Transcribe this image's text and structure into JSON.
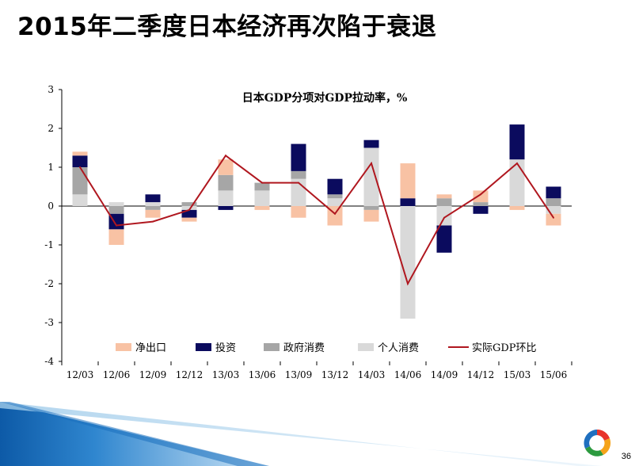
{
  "slide": {
    "title": "2015年二季度日本经济再次陷于衰退",
    "page_number": "36"
  },
  "colors": {
    "net_exports": "#F8C2A4",
    "investment": "#0B0B5E",
    "gov_consumption": "#A6A6A6",
    "private_consumption": "#D9D9D9",
    "real_gdp": "#B0171F"
  },
  "chart_data": {
    "type": "bar",
    "subtype": "stacked-bar-with-line",
    "title": "日本GDP分项对GDP拉动率，%",
    "categories": [
      "12/03",
      "12/06",
      "12/09",
      "12/12",
      "13/03",
      "13/06",
      "13/09",
      "13/12",
      "14/03",
      "14/06",
      "14/09",
      "14/12",
      "15/03",
      "15/06"
    ],
    "ylim": [
      -4,
      3
    ],
    "yticks": [
      3,
      2,
      1,
      0,
      -1,
      -2,
      -3,
      -4
    ],
    "legend_position": "bottom",
    "series": [
      {
        "name": "净出口",
        "type": "bar",
        "color": "#F8C2A4",
        "values": [
          0.1,
          -0.4,
          -0.2,
          -0.1,
          0.4,
          -0.1,
          -0.3,
          -0.5,
          -0.3,
          0.9,
          0.1,
          0.3,
          -0.1,
          -0.3
        ]
      },
      {
        "name": "投资",
        "type": "bar",
        "color": "#0B0B5E",
        "values": [
          0.3,
          -0.4,
          0.2,
          -0.2,
          -0.1,
          0.0,
          0.7,
          0.4,
          0.2,
          0.2,
          -0.7,
          -0.2,
          0.9,
          0.3
        ]
      },
      {
        "name": "政府消费",
        "type": "bar",
        "color": "#A6A6A6",
        "values": [
          0.7,
          -0.2,
          -0.1,
          0.1,
          0.4,
          0.2,
          0.2,
          0.1,
          -0.1,
          0.0,
          0.2,
          0.1,
          0.0,
          0.2
        ]
      },
      {
        "name": "个人消费",
        "type": "bar",
        "color": "#D9D9D9",
        "values": [
          0.3,
          0.1,
          0.1,
          -0.1,
          0.4,
          0.4,
          0.7,
          0.2,
          1.5,
          -2.9,
          -0.5,
          0.0,
          1.2,
          -0.2
        ]
      },
      {
        "name": "实际GDP环比",
        "type": "line",
        "color": "#B0171F",
        "values": [
          1.0,
          -0.5,
          -0.4,
          -0.1,
          1.3,
          0.6,
          0.6,
          -0.2,
          1.1,
          -2.0,
          -0.3,
          0.3,
          1.1,
          -0.3
        ]
      }
    ]
  }
}
